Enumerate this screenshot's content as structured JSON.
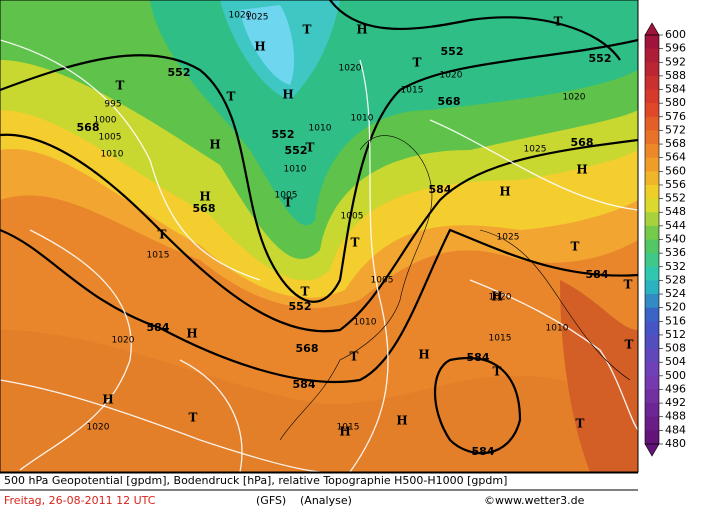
{
  "map": {
    "labels": [
      "H",
      "H",
      "T",
      "H",
      "552",
      "552",
      "552",
      "552",
      "552",
      "568",
      "568",
      "568",
      "568",
      "568",
      "584",
      "584",
      "584",
      "584",
      "584",
      "584",
      "552",
      "T",
      "T",
      "H",
      "H",
      "T",
      "T",
      "T",
      "T",
      "T",
      "T",
      "T",
      "H",
      "H",
      "T",
      "T",
      "H",
      "H",
      "H",
      "T",
      "T",
      "H",
      "T",
      "T",
      "H",
      "H",
      "T",
      "1020",
      "1020",
      "1015",
      "1005",
      "1010",
      "1000",
      "995",
      "1020",
      "1015",
      "1010",
      "1010",
      "1005",
      "1005",
      "1005",
      "1020",
      "1025",
      "1025",
      "1020",
      "1015",
      "1010",
      "1015",
      "1010",
      "1020",
      "1020",
      "1025",
      "1010"
    ]
  },
  "colorbar": {
    "ticks": [
      600,
      596,
      592,
      588,
      584,
      580,
      576,
      572,
      568,
      564,
      560,
      556,
      552,
      548,
      544,
      540,
      536,
      532,
      528,
      524,
      520,
      516,
      512,
      508,
      504,
      500,
      496,
      492,
      488,
      484,
      480
    ]
  },
  "footer": {
    "line1": "500 hPa Geopotential [gpdm], Bodendruck [hPa], relative Topographie H500-H1000 [gpdm]",
    "date": "Freitag, 26-08-2011   12 UTC",
    "model": "(GFS)",
    "run": "(Analyse)",
    "source": "©www.wetter3.de"
  }
}
